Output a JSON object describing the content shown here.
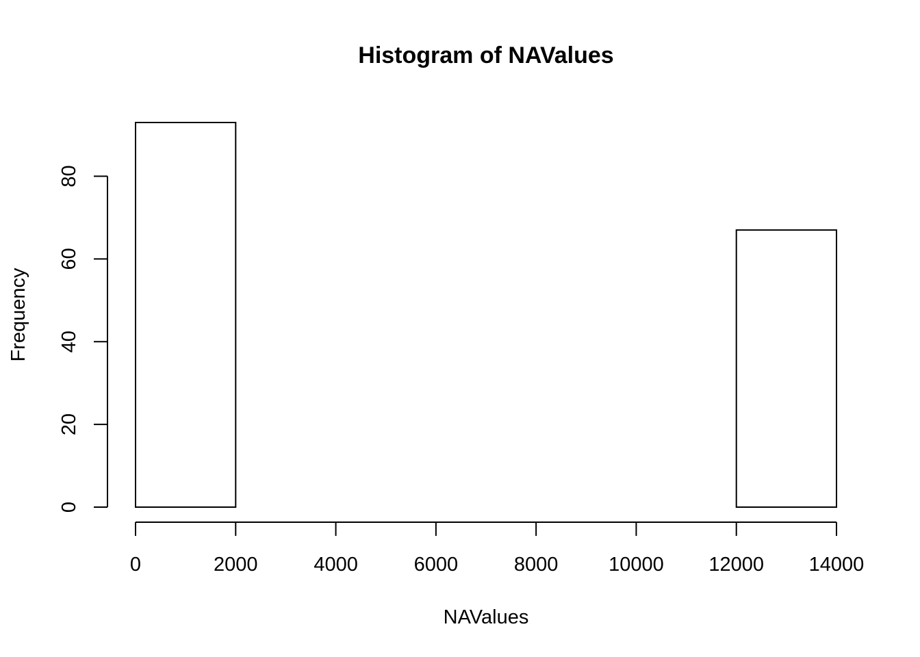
{
  "chart_data": {
    "type": "bar",
    "title": "Histogram of NAValues",
    "xlabel": "NAValues",
    "ylabel": "Frequency",
    "bins": [
      {
        "from": 0,
        "to": 2000,
        "count": 93
      },
      {
        "from": 2000,
        "to": 4000,
        "count": 0
      },
      {
        "from": 4000,
        "to": 6000,
        "count": 0
      },
      {
        "from": 6000,
        "to": 8000,
        "count": 0
      },
      {
        "from": 8000,
        "to": 10000,
        "count": 0
      },
      {
        "from": 10000,
        "to": 12000,
        "count": 0
      },
      {
        "from": 12000,
        "to": 14000,
        "count": 67
      }
    ],
    "xlim": [
      0,
      14000
    ],
    "ylim": [
      0,
      93
    ],
    "x_ticks": [
      0,
      2000,
      4000,
      6000,
      8000,
      10000,
      12000,
      14000
    ],
    "y_ticks": [
      0,
      20,
      40,
      60,
      80
    ],
    "x_tick_labels": [
      "0",
      "2000",
      "4000",
      "6000",
      "8000",
      "10000",
      "12000",
      "14000"
    ],
    "y_tick_labels": [
      "0",
      "20",
      "40",
      "60",
      "80"
    ],
    "grid": false,
    "legend": "none",
    "bar_fill": "#ffffff",
    "bar_stroke": "#000000"
  }
}
